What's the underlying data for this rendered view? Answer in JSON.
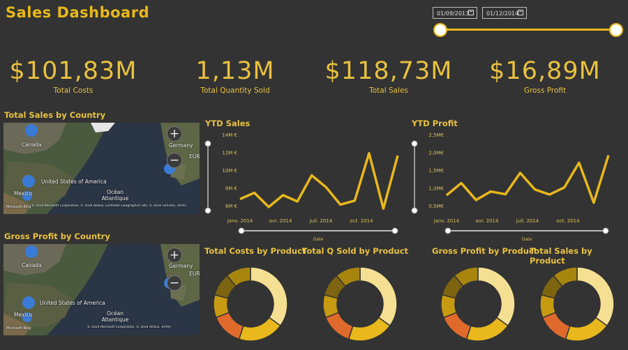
{
  "header": {
    "title": "Sales Dashboard"
  },
  "date_filter": {
    "start": "01/09/2013",
    "end": "01/12/2014"
  },
  "kpis": [
    {
      "value": "$101,83M",
      "label": "Total Costs"
    },
    {
      "value": "1,13M",
      "label": "Total Quantity Sold"
    },
    {
      "value": "$118,73M",
      "label": "Total Sales"
    },
    {
      "value": "$16,89M",
      "label": "Gross Profit"
    }
  ],
  "maps": [
    {
      "title": "Total Sales by Country",
      "labels": {
        "canada": "Canada",
        "usa": "United States of America",
        "mexico": "Mexico",
        "germany": "Germany",
        "ocean": "Océan Atlantique",
        "eur": "EUR"
      },
      "attribution": "© 2024 Microsoft Corporation, © 2024 Airbus, Earthstar Geographics SIO, © 2024 TomTom, Terms",
      "brand": "Microsoft Bing"
    },
    {
      "title": "Gross Profit by Country",
      "labels": {
        "canada": "Canada",
        "usa": "United States of America",
        "mexico": "Mexico",
        "germany": "Germany",
        "ocean": "Océan Atlantique",
        "eur": "EUR"
      },
      "attribution": "© 2024 Microsoft Corporation, © 2024 Airbus, Terms",
      "brand": "Microsoft Bing"
    }
  ],
  "chart_data": [
    {
      "type": "line",
      "title": "YTD Sales",
      "xlabel": "Date",
      "x_ticks": [
        "janv. 2014",
        "avr. 2014",
        "juil. 2014",
        "oct. 2014"
      ],
      "y_ticks": [
        "14M €",
        "12M €",
        "10M €",
        "8M €",
        "6M €"
      ],
      "ylim": [
        5.5,
        14.5
      ],
      "values": [
        6.6,
        7.4,
        5.6,
        7.1,
        6.3,
        9.6,
        8.1,
        5.9,
        6.4,
        12.4,
        5.4,
        12.1
      ],
      "color": "#e8b81c"
    },
    {
      "type": "line",
      "title": "YTD Profit",
      "xlabel": "Date",
      "x_ticks": [
        "janv. 2014",
        "avr. 2014",
        "juil. 2014",
        "oct. 2014"
      ],
      "y_ticks": [
        "2,5M€",
        "2,0M€",
        "1,5M€",
        "1,0M€",
        "0,5M€"
      ],
      "ylim": [
        0.45,
        2.55
      ],
      "values": [
        0.82,
        1.18,
        0.68,
        0.93,
        0.85,
        1.48,
        0.99,
        0.84,
        1.05,
        1.78,
        0.6,
        2.0
      ],
      "color": "#e8b81c"
    },
    {
      "type": "pie",
      "title": "Total Costs by Product",
      "values": [
        35,
        20,
        14,
        10,
        10,
        11
      ],
      "colors": [
        "#f5df92",
        "#e8b81c",
        "#e06a2c",
        "#c79a12",
        "#7d6410",
        "#a8860e"
      ]
    },
    {
      "type": "pie",
      "title": "Total Q Sold by Product",
      "values": [
        35,
        20,
        14,
        10,
        10,
        11
      ],
      "colors": [
        "#f5df92",
        "#e8b81c",
        "#e06a2c",
        "#c79a12",
        "#7d6410",
        "#a8860e"
      ]
    },
    {
      "type": "pie",
      "title": "Gross Profit by Product",
      "values": [
        35,
        20,
        14,
        10,
        10,
        11
      ],
      "colors": [
        "#f5df92",
        "#e8b81c",
        "#e06a2c",
        "#c79a12",
        "#7d6410",
        "#a8860e"
      ]
    },
    {
      "type": "pie",
      "title": "Total Sales by Product",
      "values": [
        35,
        20,
        14,
        10,
        10,
        11
      ],
      "colors": [
        "#f5df92",
        "#e8b81c",
        "#e06a2c",
        "#c79a12",
        "#7d6410",
        "#a8860e"
      ]
    }
  ]
}
